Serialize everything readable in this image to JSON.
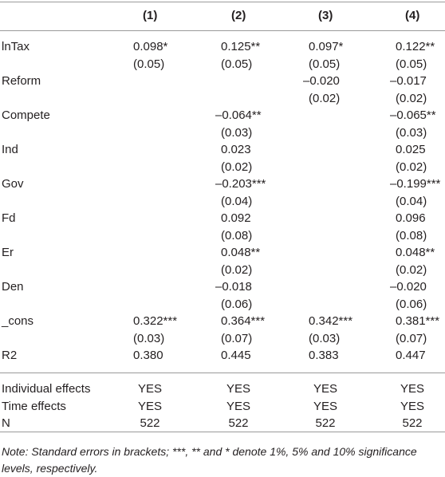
{
  "table": {
    "columns": [
      "(1)",
      "(2)",
      "(3)",
      "(4)"
    ],
    "rows": [
      {
        "label": "lnTax",
        "cells": [
          "0.098*",
          "0.125**",
          "0.097*",
          "0.122**"
        ]
      },
      {
        "label": null,
        "cells": [
          "(0.05)",
          "(0.05)",
          "(0.05)",
          "(0.05)"
        ]
      },
      {
        "label": "Reform",
        "cells": [
          null,
          null,
          "–0.020",
          "–0.017"
        ]
      },
      {
        "label": null,
        "cells": [
          null,
          null,
          "(0.02)",
          "(0.02)"
        ]
      },
      {
        "label": "Compete",
        "cells": [
          null,
          "–0.064**",
          null,
          "–0.065**"
        ]
      },
      {
        "label": null,
        "cells": [
          null,
          "(0.03)",
          null,
          "(0.03)"
        ]
      },
      {
        "label": "Ind",
        "cells": [
          null,
          "0.023",
          null,
          "0.025"
        ]
      },
      {
        "label": null,
        "cells": [
          null,
          "(0.02)",
          null,
          "(0.02)"
        ]
      },
      {
        "label": "Gov",
        "cells": [
          null,
          "–0.203***",
          null,
          "–0.199***"
        ]
      },
      {
        "label": null,
        "cells": [
          null,
          "(0.04)",
          null,
          "(0.04)"
        ]
      },
      {
        "label": "Fd",
        "cells": [
          null,
          "0.092",
          null,
          "0.096"
        ]
      },
      {
        "label": null,
        "cells": [
          null,
          "(0.08)",
          null,
          "(0.08)"
        ]
      },
      {
        "label": "Er",
        "cells": [
          null,
          "0.048**",
          null,
          "0.048**"
        ]
      },
      {
        "label": null,
        "cells": [
          null,
          "(0.02)",
          null,
          "(0.02)"
        ]
      },
      {
        "label": "Den",
        "cells": [
          null,
          "–0.018",
          null,
          "–0.020"
        ]
      },
      {
        "label": null,
        "cells": [
          null,
          "(0.06)",
          null,
          "(0.06)"
        ]
      },
      {
        "label": "_cons",
        "cells": [
          "0.322***",
          "0.364***",
          "0.342***",
          "0.381***"
        ]
      },
      {
        "label": null,
        "cells": [
          "(0.03)",
          "(0.07)",
          "(0.03)",
          "(0.07)"
        ]
      },
      {
        "label": "R2",
        "cells": [
          "0.380",
          "0.445",
          "0.383",
          "0.447"
        ]
      }
    ],
    "footer_rows": [
      {
        "label": "Individual effects",
        "cells": [
          "YES",
          "YES",
          "YES",
          "YES"
        ]
      },
      {
        "label": "Time effects",
        "cells": [
          "YES",
          "YES",
          "YES",
          "YES"
        ]
      },
      {
        "label": "N",
        "cells": [
          "522",
          "522",
          "522",
          "522"
        ]
      }
    ],
    "note": "Note: Standard errors in brackets; ***, ** and * denote 1%, 5% and 10% significance levels, respectively."
  }
}
